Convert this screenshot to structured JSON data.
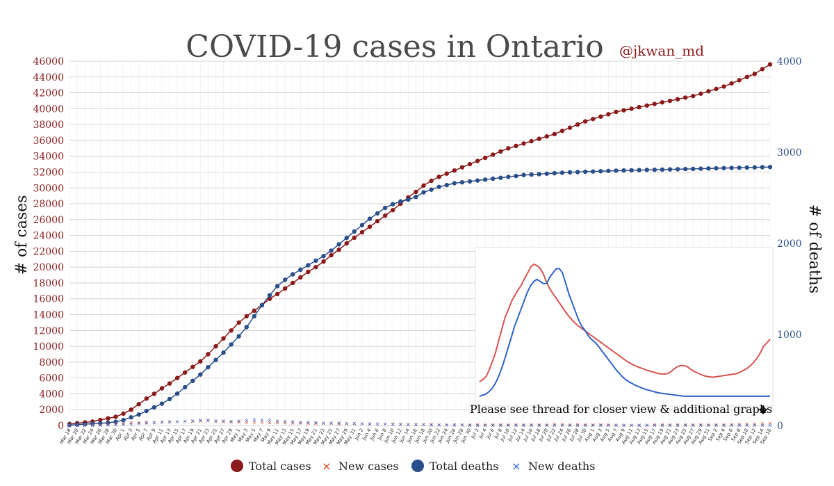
{
  "chart_data": {
    "type": "line",
    "title": "COVID-19 cases in Ontario",
    "attribution": "@jkwan_md",
    "ylabel_left": "# of cases",
    "ylabel_right": "# of deaths",
    "ylim_left": [
      0,
      46000
    ],
    "ylim_right": [
      0,
      4000
    ],
    "yticks_left": [
      "0",
      "2000",
      "4000",
      "6000",
      "8000",
      "10000",
      "12000",
      "14000",
      "16000",
      "18000",
      "20000",
      "22000",
      "24000",
      "26000",
      "28000",
      "30000",
      "32000",
      "34000",
      "36000",
      "38000",
      "40000",
      "42000",
      "44000",
      "46000"
    ],
    "yticks_right": [
      "0",
      "1000",
      "2000",
      "3000",
      "4000"
    ],
    "x_tick_labels": [
      "Mar 18",
      "Mar 20",
      "Mar 22",
      "Mar 24",
      "Mar 26",
      "Mar 28",
      "Mar 30",
      "Apr 1",
      "Apr 3",
      "Apr 5",
      "Apr 7",
      "Apr 9",
      "Apr 11",
      "Apr 13",
      "Apr 15",
      "Apr 17",
      "Apr 19",
      "Apr 21",
      "Apr 23",
      "Apr 25",
      "Apr 27",
      "Apr 29",
      "May 1",
      "May 3",
      "May 5",
      "May 7",
      "May 9",
      "May 11",
      "May 13",
      "May 15",
      "May 17",
      "May 19",
      "May 21",
      "May 23",
      "May 25",
      "May 27",
      "May 29",
      "May 31",
      "Jun 2",
      "Jun 4",
      "Jun 6",
      "Jun 8",
      "Jun 10",
      "Jun 12",
      "Jun 14",
      "Jun 16",
      "Jun 18",
      "Jun 20",
      "Jun 22",
      "Jun 24",
      "Jun 26",
      "Jun 28",
      "Jun 30",
      "Jul 2",
      "Jul 4",
      "Jul 6",
      "Jul 8",
      "Jul 10",
      "Jul 12",
      "Jul 14",
      "Jul 16",
      "Jul 18",
      "Jul 20",
      "Jul 22",
      "Jul 24",
      "Jul 26",
      "Jul 28",
      "Jul 30",
      "Aug 1",
      "Aug 3",
      "Aug 5",
      "Aug 7",
      "Aug 9",
      "Aug 11",
      "Aug 13",
      "Aug 15",
      "Aug 17",
      "Aug 19",
      "Aug 21",
      "Aug 23",
      "Aug 25",
      "Aug 27",
      "Aug 29",
      "Aug 31",
      "Sep 2",
      "Sep 4",
      "Sep 6",
      "Sep 8",
      "Sep 10",
      "Sep 12",
      "Sep 14",
      "Sep 16"
    ],
    "series": [
      {
        "name": "Total cases",
        "axis": "left",
        "color": "#8b1a1a",
        "values": [
          200,
          300,
          400,
          500,
          700,
          900,
          1100,
          1500,
          2000,
          2700,
          3400,
          4000,
          4700,
          5300,
          6000,
          6700,
          7400,
          8100,
          9000,
          10000,
          11000,
          12000,
          13000,
          13800,
          14500,
          15200,
          16000,
          16600,
          17300,
          18000,
          18700,
          19400,
          20000,
          20700,
          21500,
          22200,
          23000,
          23700,
          24400,
          25100,
          25800,
          26500,
          27200,
          28000,
          28800,
          29500,
          30300,
          30900,
          31400,
          31800,
          32200,
          32600,
          33000,
          33400,
          33800,
          34200,
          34600,
          35000,
          35300,
          35600,
          35900,
          36200,
          36500,
          36800,
          37200,
          37600,
          38000,
          38400,
          38700,
          39000,
          39300,
          39600,
          39800,
          40000,
          40200,
          40400,
          40600,
          40800,
          41000,
          41200,
          41400,
          41600,
          41900,
          42200,
          42500,
          42800,
          43200,
          43600,
          44000,
          44400,
          45000,
          45600
        ]
      },
      {
        "name": "Total deaths",
        "axis": "right",
        "color": "#2b4f8a",
        "values": [
          5,
          10,
          15,
          20,
          25,
          30,
          40,
          60,
          90,
          120,
          160,
          200,
          240,
          290,
          350,
          420,
          490,
          560,
          640,
          720,
          800,
          890,
          980,
          1080,
          1200,
          1320,
          1430,
          1530,
          1600,
          1660,
          1710,
          1760,
          1810,
          1860,
          1920,
          1990,
          2060,
          2130,
          2200,
          2270,
          2330,
          2390,
          2430,
          2460,
          2480,
          2510,
          2560,
          2590,
          2620,
          2640,
          2660,
          2670,
          2680,
          2690,
          2700,
          2710,
          2720,
          2730,
          2740,
          2750,
          2755,
          2760,
          2765,
          2770,
          2775,
          2780,
          2783,
          2786,
          2789,
          2792,
          2795,
          2798,
          2800,
          2802,
          2804,
          2806,
          2808,
          2810,
          2812,
          2814,
          2816,
          2818,
          2820,
          2822,
          2824,
          2826,
          2828,
          2830,
          2832,
          2834,
          2836,
          2838
        ]
      },
      {
        "name": "New cases",
        "axis": "left",
        "color": "#d94a2a",
        "values": [
          60,
          80,
          100,
          120,
          150,
          200,
          260,
          300,
          380,
          400,
          450,
          420,
          480,
          500,
          520,
          550,
          560,
          600,
          640,
          580,
          520,
          500,
          480,
          460,
          440,
          420,
          400,
          380,
          360,
          340,
          330,
          320,
          310,
          300,
          290,
          280,
          270,
          260,
          250,
          240,
          230,
          220,
          210,
          200,
          190,
          180,
          170,
          160,
          150,
          150,
          140,
          140,
          130,
          130,
          120,
          120,
          120,
          110,
          110,
          110,
          120,
          130,
          150,
          170,
          160,
          140,
          130,
          130,
          120,
          110,
          110,
          100,
          100,
          100,
          100,
          100,
          110,
          110,
          110,
          110,
          110,
          120,
          120,
          130,
          140,
          150,
          160,
          180,
          200,
          230,
          260,
          300
        ]
      },
      {
        "name": "New deaths",
        "axis": "right",
        "color": "#3f6fd6",
        "values": [
          1,
          2,
          3,
          4,
          5,
          7,
          10,
          15,
          20,
          25,
          30,
          35,
          40,
          45,
          45,
          50,
          55,
          60,
          60,
          55,
          55,
          50,
          55,
          60,
          70,
          65,
          60,
          55,
          50,
          45,
          40,
          40,
          35,
          30,
          30,
          30,
          28,
          26,
          24,
          22,
          20,
          18,
          16,
          14,
          12,
          10,
          10,
          8,
          8,
          7,
          6,
          6,
          5,
          5,
          4,
          4,
          4,
          3,
          3,
          3,
          3,
          3,
          2,
          2,
          2,
          2,
          2,
          2,
          2,
          2,
          2,
          2,
          2,
          2,
          2,
          2,
          2,
          2,
          2,
          2,
          2,
          2,
          2,
          2,
          2,
          2,
          2,
          2,
          2,
          2,
          2,
          2
        ]
      }
    ],
    "legend": [
      "Total cases",
      "New cases",
      "Total deaths",
      "New deaths"
    ],
    "legend_position": "bottom",
    "inset_note": "Please see thread for closer view & additional graphs"
  },
  "colors": {
    "cases": "#8b1a1a",
    "deaths": "#2b4f8a",
    "new_cases": "#d94a2a",
    "new_deaths": "#3f6fd6"
  }
}
